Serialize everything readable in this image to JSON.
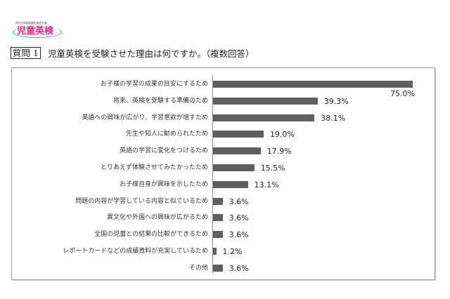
{
  "logo": {
    "org_text": "(財)日本英語検定協会主催",
    "brand": "児童英検"
  },
  "question": {
    "badge": "質問 1",
    "text": "児童英検を受験させた理由は何ですか。（複数回答）"
  },
  "chart_data": {
    "type": "bar",
    "orientation": "horizontal",
    "title": "児童英検を受験させた理由は何ですか。（複数回答）",
    "xlabel": "",
    "ylabel": "",
    "unit": "%",
    "grid": false,
    "legend": null,
    "xlim": [
      0,
      75
    ],
    "categories": [
      "お子様の学習の成果の目安にするため",
      "将来、英検を受験する準備のため",
      "英語への興味が広がり、学習意欲が増すため",
      "先生や知人に勧められたため",
      "英語の学習に変化をつけるため",
      "とりあえず体験させてみたかったため",
      "お子様自身が興味を示したため",
      "問題の内容が学習している内容と似ているため",
      "異文化や外国への興味が広がるため",
      "全国の児童との結果の比較ができるため",
      "レポートカードなどの成績資料が充実しているため",
      "その他"
    ],
    "values": [
      75.0,
      39.3,
      38.1,
      19.0,
      17.9,
      15.5,
      13.1,
      3.6,
      3.6,
      3.6,
      1.2,
      3.6
    ],
    "value_labels": [
      "75.0%",
      "39.3%",
      "38.1%",
      "19.0%",
      "17.9%",
      "15.5%",
      "13.1%",
      "3.6%",
      "3.6%",
      "3.6%",
      "1.2%",
      "3.6%"
    ],
    "bar_color": "#5f5f5f"
  }
}
